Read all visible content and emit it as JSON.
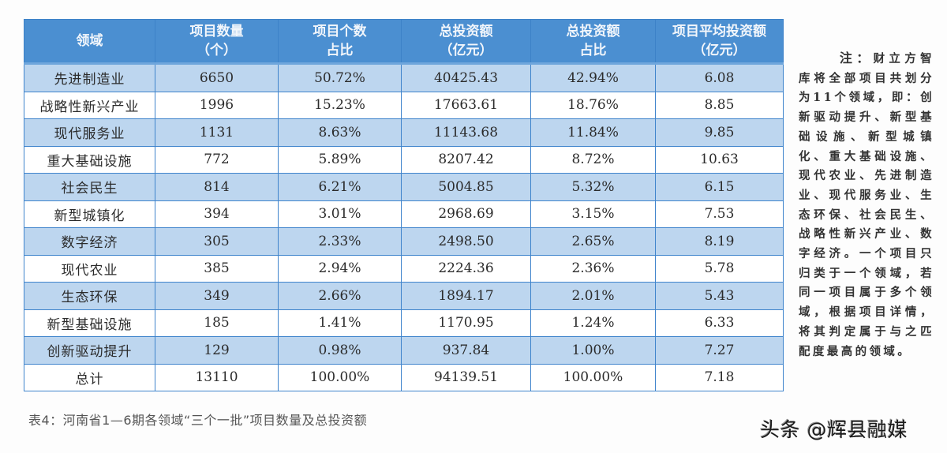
{
  "table": {
    "headers": [
      {
        "line1": "领域",
        "line2": ""
      },
      {
        "line1": "项目数量",
        "line2": "（个）"
      },
      {
        "line1": "项目个数",
        "line2": "占比"
      },
      {
        "line1": "总投资额",
        "line2": "（亿元）"
      },
      {
        "line1": "总投资额",
        "line2": "占比"
      },
      {
        "line1": "项目平均投资额",
        "line2": "（亿元）"
      }
    ],
    "rows": [
      {
        "domain": "先进制造业",
        "count": "6650",
        "count_share": "50.72%",
        "investment": "40425.43",
        "investment_share": "42.94%",
        "avg_investment": "6.08"
      },
      {
        "domain": "战略性新兴产业",
        "count": "1996",
        "count_share": "15.23%",
        "investment": "17663.61",
        "investment_share": "18.76%",
        "avg_investment": "8.85"
      },
      {
        "domain": "现代服务业",
        "count": "1131",
        "count_share": "8.63%",
        "investment": "11143.68",
        "investment_share": "11.84%",
        "avg_investment": "9.85"
      },
      {
        "domain": "重大基础设施",
        "count": "772",
        "count_share": "5.89%",
        "investment": "8207.42",
        "investment_share": "8.72%",
        "avg_investment": "10.63"
      },
      {
        "domain": "社会民生",
        "count": "814",
        "count_share": "6.21%",
        "investment": "5004.85",
        "investment_share": "5.32%",
        "avg_investment": "6.15"
      },
      {
        "domain": "新型城镇化",
        "count": "394",
        "count_share": "3.01%",
        "investment": "2968.69",
        "investment_share": "3.15%",
        "avg_investment": "7.53"
      },
      {
        "domain": "数字经济",
        "count": "305",
        "count_share": "2.33%",
        "investment": "2498.50",
        "investment_share": "2.65%",
        "avg_investment": "8.19"
      },
      {
        "domain": "现代农业",
        "count": "385",
        "count_share": "2.94%",
        "investment": "2224.36",
        "investment_share": "2.36%",
        "avg_investment": "5.78"
      },
      {
        "domain": "生态环保",
        "count": "349",
        "count_share": "2.66%",
        "investment": "1894.17",
        "investment_share": "2.01%",
        "avg_investment": "5.43"
      },
      {
        "domain": "新型基础设施",
        "count": "185",
        "count_share": "1.41%",
        "investment": "1170.95",
        "investment_share": "1.24%",
        "avg_investment": "6.33"
      },
      {
        "domain": "创新驱动提升",
        "count": "129",
        "count_share": "0.98%",
        "investment": "937.84",
        "investment_share": "1.00%",
        "avg_investment": "7.27"
      },
      {
        "domain": "总计",
        "count": "13110",
        "count_share": "100.00%",
        "investment": "94139.51",
        "investment_share": "100.00%",
        "avg_investment": "7.18"
      }
    ]
  },
  "note": {
    "lead": "注：",
    "text": "财立方智库将全部项目共划分为11个领域，即：创新驱动提升、新型基础设施、新型城镇化、重大基础设施、现代农业、先进制造业、现代服务业、生态环保、社会民生、战略性新兴产业、数字经济。一个项目只归类于一个领域，若同一项目属于多个领域，根据项目详情，将其判定属于与之匹配度最高的领域。"
  },
  "caption": "表4：河南省1—6期各领域“三个一批”项目数量及总投资额",
  "watermark": "头条 @辉县融媒",
  "colors": {
    "header_bg": "#4b8fd1",
    "row_alt_bg": "#bdd6ef",
    "border": "#3f84cc"
  }
}
